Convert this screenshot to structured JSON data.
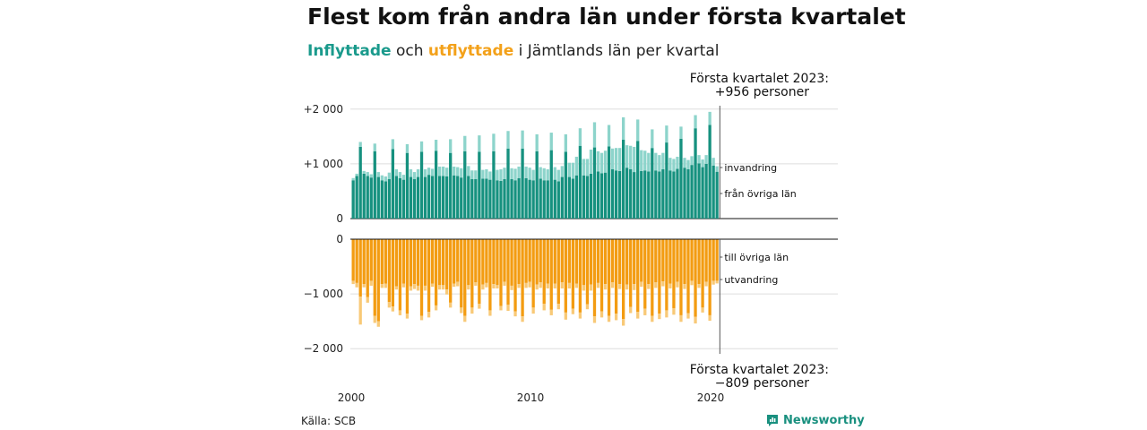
{
  "title": "Flest kom från andra län under första kvartalet",
  "subtitle": {
    "inflow": "Inflyttade",
    "och": " och ",
    "outflow": "utflyttade",
    "rest": " i Jämtlands län per kvartal"
  },
  "source": "Källa: SCB",
  "brand": "Newsworthy",
  "colors": {
    "inflow_other_counties": "#16917f",
    "immigration": "#8dd4cb",
    "outflow_other_counties": "#f39c12",
    "emigration": "#f8c977",
    "axis": "#111111",
    "grid": "#dddddd"
  },
  "chart_data": {
    "type": "bar",
    "subtype": "diverging-stacked-bar",
    "period": "quarterly",
    "first_quarter": "2000 Q1",
    "last_quarter": "2023 Q1",
    "x_tick_labels": [
      "2000",
      "2010",
      "2020"
    ],
    "top_panel": {
      "ylim": [
        0,
        2000
      ],
      "y_ticks": [
        0,
        1000,
        2000
      ],
      "y_tick_labels": [
        "0",
        "+1 000",
        "+2 000"
      ],
      "series_labels": [
        "invandring",
        "från övriga län"
      ],
      "annotation": [
        "Första kvartalet 2023:",
        "+956 personer"
      ],
      "from_other_counties": [
        700,
        780,
        1310,
        820,
        780,
        750,
        1230,
        760,
        700,
        680,
        720,
        1270,
        780,
        740,
        710,
        1200,
        760,
        720,
        760,
        1220,
        760,
        800,
        780,
        1240,
        780,
        780,
        770,
        1200,
        790,
        780,
        750,
        1230,
        780,
        720,
        720,
        1220,
        730,
        730,
        710,
        1230,
        700,
        690,
        720,
        1280,
        720,
        700,
        740,
        1280,
        740,
        710,
        700,
        1230,
        730,
        700,
        700,
        1250,
        710,
        680,
        760,
        1220,
        760,
        730,
        790,
        1330,
        790,
        780,
        820,
        1300,
        860,
        830,
        840,
        1320,
        900,
        880,
        870,
        1440,
        930,
        900,
        850,
        1420,
        870,
        880,
        860,
        1290,
        880,
        860,
        900,
        1390,
        880,
        860,
        910,
        1460,
        930,
        900,
        980,
        1650,
        1010,
        940,
        1000,
        1710,
        970,
        856
      ],
      "immigration": [
        40,
        40,
        90,
        50,
        70,
        60,
        140,
        90,
        90,
        90,
        120,
        180,
        120,
        110,
        90,
        160,
        140,
        130,
        140,
        190,
        140,
        130,
        130,
        200,
        170,
        170,
        160,
        250,
        160,
        160,
        170,
        280,
        180,
        160,
        160,
        300,
        160,
        170,
        150,
        320,
        190,
        210,
        210,
        320,
        200,
        210,
        210,
        330,
        210,
        220,
        190,
        310,
        210,
        220,
        200,
        320,
        230,
        210,
        200,
        320,
        260,
        290,
        340,
        320,
        300,
        310,
        440,
        460,
        370,
        370,
        400,
        390,
        380,
        410,
        420,
        410,
        410,
        430,
        460,
        390,
        380,
        360,
        340,
        340,
        320,
        300,
        300,
        310,
        230,
        230,
        220,
        220,
        180,
        170,
        160,
        240,
        150,
        140,
        160,
        240,
        140,
        100
      ],
      "legend_position": "right"
    },
    "bottom_panel": {
      "ylim": [
        -2000,
        0
      ],
      "y_ticks": [
        0,
        -1000,
        -2000
      ],
      "y_tick_labels": [
        "0",
        "−1 000",
        "−2 000"
      ],
      "series_labels": [
        "till övriga län",
        "utvandring"
      ],
      "annotation": [
        "Första kvartalet 2023:",
        "−809 personer"
      ],
      "to_other_counties": [
        -760,
        -800,
        -1050,
        -820,
        -1060,
        -760,
        -1400,
        -1500,
        -820,
        -810,
        -1150,
        -1230,
        -860,
        -1300,
        -810,
        -1360,
        -860,
        -820,
        -850,
        -1400,
        -850,
        -1330,
        -810,
        -1210,
        -840,
        -840,
        -920,
        -1160,
        -810,
        -780,
        -1250,
        -1400,
        -840,
        -1250,
        -790,
        -1180,
        -830,
        -800,
        -1300,
        -820,
        -840,
        -1220,
        -780,
        -1200,
        -850,
        -1320,
        -820,
        -1410,
        -800,
        -780,
        -1250,
        -830,
        -790,
        -1180,
        -810,
        -1290,
        -810,
        -1180,
        -790,
        -1340,
        -800,
        -1270,
        -810,
        -1340,
        -840,
        -1190,
        -830,
        -1410,
        -800,
        -1320,
        -820,
        -1400,
        -790,
        -1360,
        -820,
        -1460,
        -830,
        -1240,
        -820,
        -1330,
        -780,
        -1270,
        -820,
        -1400,
        -790,
        -1360,
        -770,
        -1300,
        -810,
        -1260,
        -780,
        -1390,
        -820,
        -1350,
        -760,
        -1420,
        -820,
        -1250,
        -780,
        -1390,
        -760,
        -760
      ],
      "emigration": [
        -60,
        -80,
        -510,
        -60,
        -100,
        -90,
        -130,
        -100,
        -70,
        -80,
        -100,
        -90,
        -60,
        -90,
        -70,
        -90,
        -80,
        -90,
        -90,
        -80,
        -90,
        -100,
        -60,
        -90,
        -80,
        -80,
        -90,
        -90,
        -60,
        -80,
        -100,
        -110,
        -80,
        -110,
        -60,
        -90,
        -90,
        -80,
        -100,
        -80,
        -60,
        -80,
        -70,
        -110,
        -80,
        -90,
        -70,
        -100,
        -90,
        -100,
        -110,
        -90,
        -100,
        -120,
        -90,
        -100,
        -90,
        -100,
        -110,
        -130,
        -100,
        -100,
        -80,
        -110,
        -100,
        -90,
        -110,
        -120,
        -90,
        -110,
        -100,
        -110,
        -100,
        -120,
        -90,
        -120,
        -90,
        -110,
        -110,
        -120,
        -90,
        -120,
        -90,
        -110,
        -100,
        -100,
        -90,
        -130,
        -90,
        -120,
        -100,
        -120,
        -90,
        -100,
        -80,
        -120,
        -70,
        -90,
        -80,
        -100,
        -70,
        -49
      ],
      "legend_position": "right"
    },
    "grid": true
  }
}
